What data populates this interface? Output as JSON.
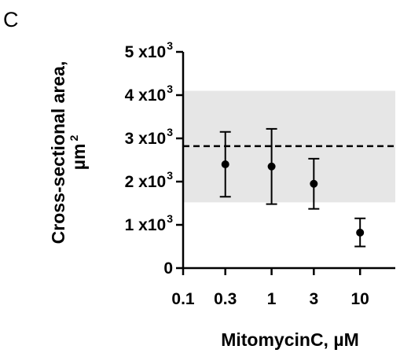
{
  "panel_label": "C",
  "chart_data": {
    "type": "scatter",
    "x_scale": "log",
    "xlim": [
      0.1,
      25
    ],
    "ylim": [
      0,
      5000
    ],
    "xlabel": "MitomycinC, µM",
    "ylabel_line1": "Cross-sectional area,",
    "ylabel_line2": "µm",
    "ylabel_line2_sup": "2",
    "x_ticks": [
      {
        "value": 0.1,
        "label": "0.1"
      },
      {
        "value": 0.3,
        "label": "0.3"
      },
      {
        "value": 1,
        "label": "1"
      },
      {
        "value": 3,
        "label": "3"
      },
      {
        "value": 10,
        "label": "10"
      }
    ],
    "y_ticks": [
      {
        "value": 0,
        "base": "0",
        "exp": ""
      },
      {
        "value": 1000,
        "base": "1 x10",
        "exp": "3"
      },
      {
        "value": 2000,
        "base": "2 x10",
        "exp": "3"
      },
      {
        "value": 3000,
        "base": "3 x10",
        "exp": "3"
      },
      {
        "value": 4000,
        "base": "4 x10",
        "exp": "3"
      },
      {
        "value": 5000,
        "base": "5 x10",
        "exp": "3"
      }
    ],
    "points": [
      {
        "x": 0.3,
        "y": 2400,
        "y_low": 1650,
        "y_high": 3150
      },
      {
        "x": 1,
        "y": 2350,
        "y_low": 1480,
        "y_high": 3220
      },
      {
        "x": 3,
        "y": 1950,
        "y_low": 1370,
        "y_high": 2530
      },
      {
        "x": 10,
        "y": 820,
        "y_low": 500,
        "y_high": 1150
      }
    ],
    "reference_line": {
      "y": 2820,
      "style": "dashed"
    },
    "reference_band": {
      "y_low": 1520,
      "y_high": 4100,
      "color": "#e6e6e6"
    },
    "marker_color": "#000000"
  }
}
